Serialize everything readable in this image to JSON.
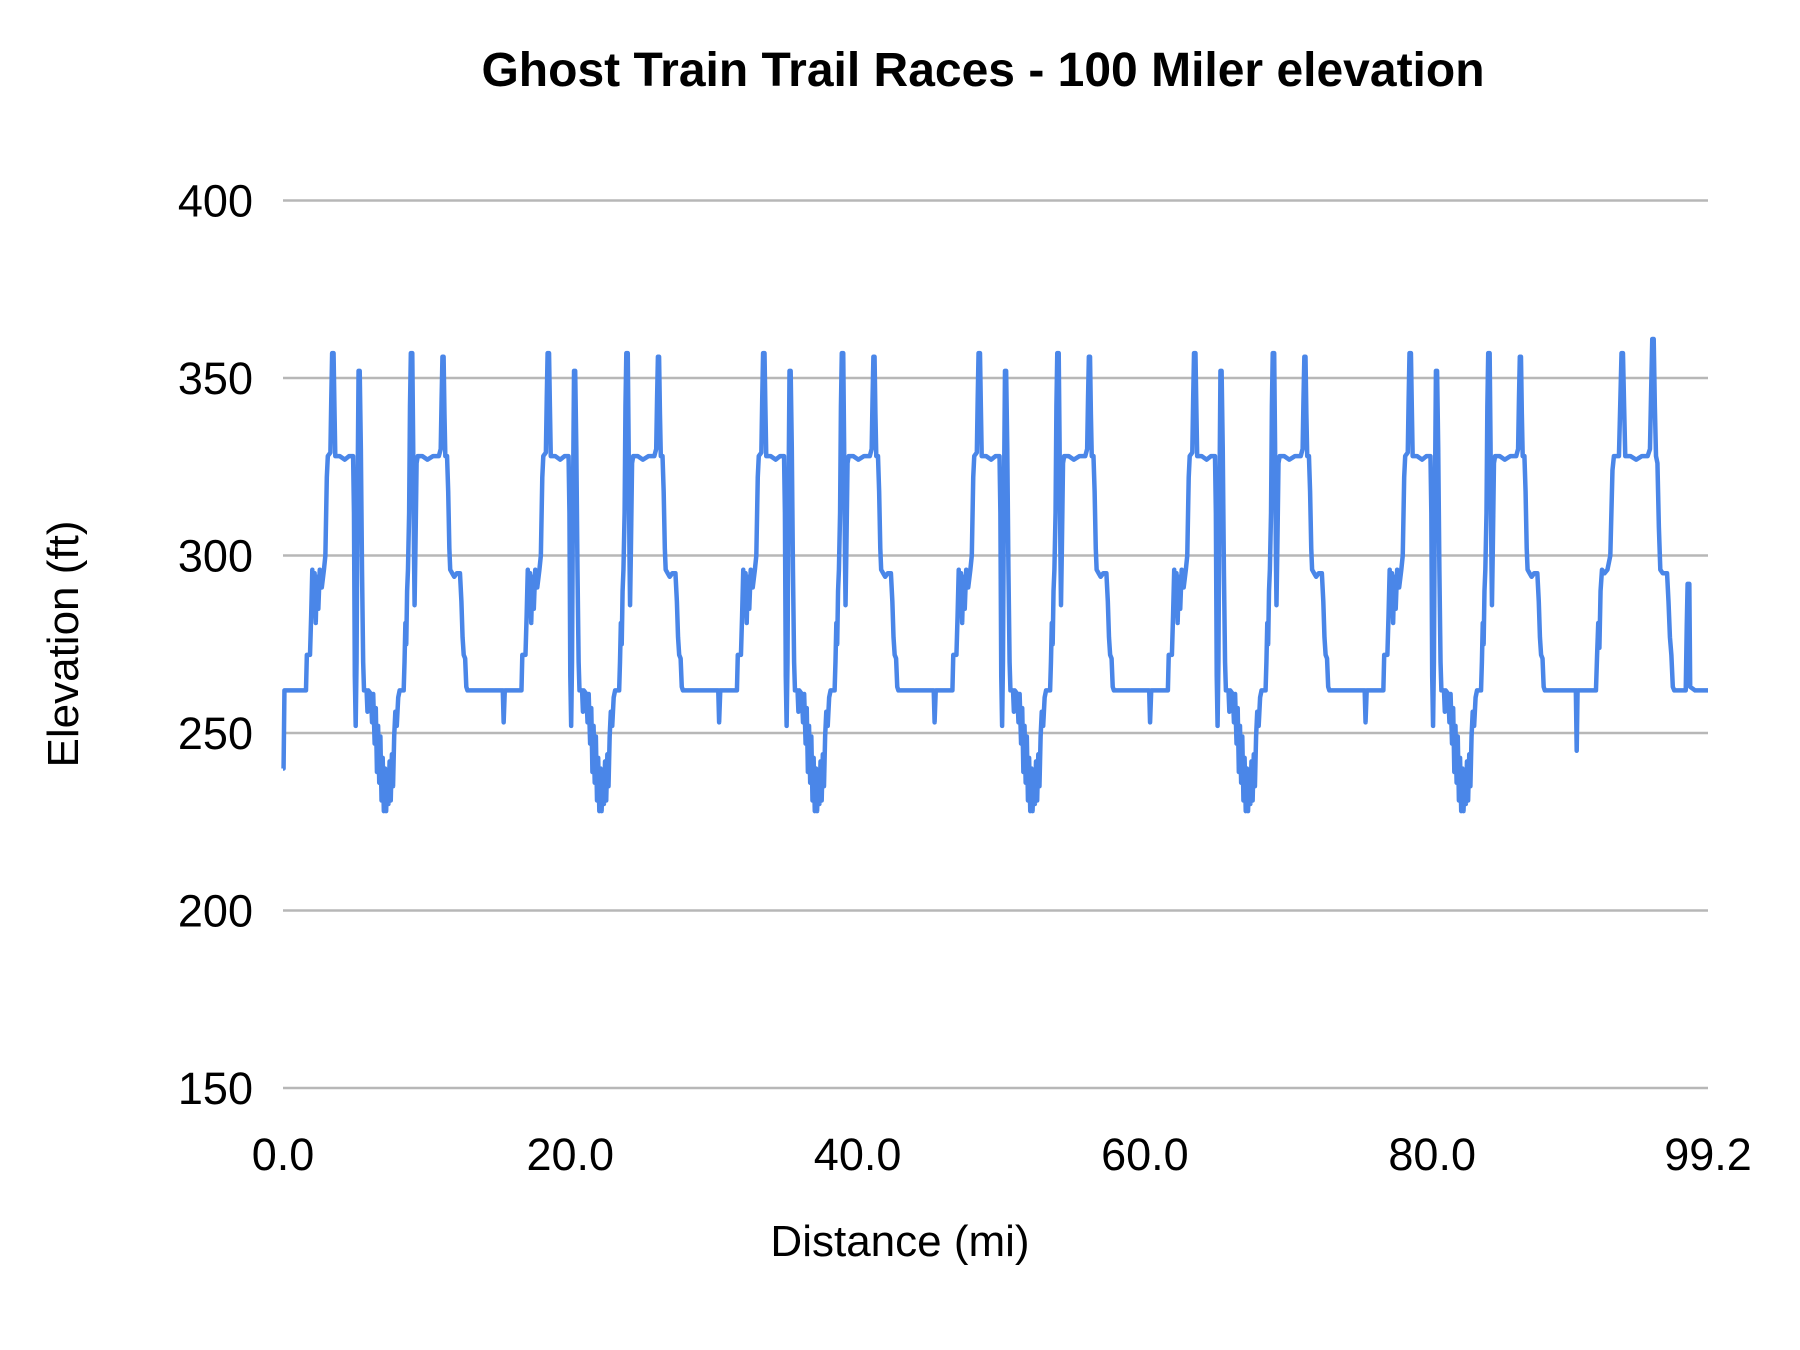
{
  "title": "Ghost Train Trail Races - 100 Miler elevation",
  "y_axis": {
    "title": "Elevation (ft)",
    "tick_labels": [
      "400",
      "350",
      "300",
      "250",
      "200",
      "150"
    ]
  },
  "x_axis": {
    "title": "Distance (mi)",
    "tick_labels": [
      "0.0",
      "20.0",
      "40.0",
      "60.0",
      "80.0",
      "99.2"
    ]
  },
  "colors": {
    "line": "#4a86e8",
    "gridline": "#b7b7b7",
    "text": "#000000",
    "background": "#ffffff"
  },
  "chart_data": {
    "type": "line",
    "title": "Ghost Train Trail Races - 100 Miler elevation",
    "xlabel": "Distance (mi)",
    "ylabel": "Elevation (ft)",
    "xlim": [
      0,
      99.2
    ],
    "ylim": [
      150,
      400
    ],
    "x_ticks": [
      0,
      20,
      40,
      60,
      80,
      99.2
    ],
    "y_ticks": [
      400,
      350,
      300,
      250,
      200,
      150
    ],
    "grid": true,
    "legend": false,
    "structure": "Six repeated 15-mile out-and-back laps (miles 0-90) plus a final partial lap (miles 90-99.2). Full series = start_points, then lap_profile offset by 15*i for i=0..5 (lap 0 skips offsets < 0.5), then final_segment.",
    "lap_length_mi": 15,
    "full_laps": 6,
    "start_points": [
      [
        0.0,
        240
      ],
      [
        0.04,
        240
      ],
      [
        0.1,
        262
      ],
      [
        0.5,
        262
      ]
    ],
    "lap_profile": [
      [
        0.0,
        262
      ],
      [
        0.3,
        262
      ],
      [
        0.36,
        253
      ],
      [
        0.44,
        262
      ],
      [
        1.6,
        262
      ],
      [
        1.66,
        272
      ],
      [
        1.88,
        272
      ],
      [
        1.96,
        283
      ],
      [
        2.04,
        296
      ],
      [
        2.12,
        288
      ],
      [
        2.2,
        295
      ],
      [
        2.28,
        281
      ],
      [
        2.36,
        294
      ],
      [
        2.46,
        285
      ],
      [
        2.56,
        296
      ],
      [
        2.7,
        291
      ],
      [
        2.85,
        296
      ],
      [
        2.95,
        300
      ],
      [
        3.05,
        322
      ],
      [
        3.12,
        328
      ],
      [
        3.3,
        329
      ],
      [
        3.36,
        344
      ],
      [
        3.42,
        357
      ],
      [
        3.52,
        357
      ],
      [
        3.58,
        342
      ],
      [
        3.64,
        328
      ],
      [
        3.95,
        328
      ],
      [
        4.3,
        327
      ],
      [
        4.6,
        328
      ],
      [
        4.88,
        328
      ],
      [
        4.94,
        312
      ],
      [
        5.0,
        266
      ],
      [
        5.06,
        252
      ],
      [
        5.12,
        270
      ],
      [
        5.18,
        312
      ],
      [
        5.26,
        352
      ],
      [
        5.34,
        352
      ],
      [
        5.42,
        330
      ],
      [
        5.5,
        296
      ],
      [
        5.58,
        270
      ],
      [
        5.64,
        262
      ],
      [
        5.82,
        262
      ],
      [
        5.88,
        256
      ],
      [
        5.94,
        262
      ],
      [
        6.12,
        261
      ],
      [
        6.2,
        253
      ],
      [
        6.28,
        261
      ],
      [
        6.38,
        247
      ],
      [
        6.46,
        257
      ],
      [
        6.54,
        239
      ],
      [
        6.62,
        252
      ],
      [
        6.7,
        236
      ],
      [
        6.78,
        249
      ],
      [
        6.86,
        231
      ],
      [
        6.94,
        243
      ],
      [
        7.02,
        228
      ],
      [
        7.1,
        240
      ],
      [
        7.18,
        228
      ],
      [
        7.26,
        239
      ],
      [
        7.34,
        230
      ],
      [
        7.42,
        242
      ],
      [
        7.5,
        231
      ],
      [
        7.58,
        244
      ],
      [
        7.66,
        235
      ],
      [
        7.74,
        249
      ],
      [
        7.82,
        256
      ],
      [
        7.92,
        252
      ],
      [
        8.02,
        260
      ],
      [
        8.12,
        262
      ],
      [
        8.4,
        262
      ],
      [
        8.46,
        270
      ],
      [
        8.52,
        281
      ],
      [
        8.58,
        275
      ],
      [
        8.64,
        290
      ],
      [
        8.7,
        296
      ],
      [
        8.78,
        312
      ],
      [
        8.84,
        342
      ],
      [
        8.9,
        357
      ],
      [
        9.0,
        357
      ],
      [
        9.06,
        332
      ],
      [
        9.12,
        300
      ],
      [
        9.16,
        286
      ],
      [
        9.22,
        302
      ],
      [
        9.3,
        326
      ],
      [
        9.38,
        328
      ],
      [
        9.7,
        328
      ],
      [
        10.05,
        327
      ],
      [
        10.45,
        328
      ],
      [
        10.85,
        328
      ],
      [
        10.98,
        330
      ],
      [
        11.04,
        344
      ],
      [
        11.1,
        356
      ],
      [
        11.18,
        356
      ],
      [
        11.24,
        340
      ],
      [
        11.3,
        328
      ],
      [
        11.42,
        328
      ],
      [
        11.5,
        318
      ],
      [
        11.58,
        302
      ],
      [
        11.64,
        296
      ],
      [
        11.78,
        295
      ],
      [
        11.92,
        294
      ],
      [
        12.1,
        295
      ],
      [
        12.32,
        295
      ],
      [
        12.42,
        287
      ],
      [
        12.5,
        277
      ],
      [
        12.58,
        272
      ],
      [
        12.68,
        271
      ],
      [
        12.76,
        263
      ],
      [
        12.84,
        262
      ],
      [
        13.3,
        262
      ],
      [
        14.2,
        262
      ],
      [
        15.0,
        262
      ]
    ],
    "final_segment": [
      [
        90.0,
        262
      ],
      [
        90.06,
        245
      ],
      [
        90.12,
        262
      ],
      [
        91.4,
        262
      ],
      [
        91.48,
        272
      ],
      [
        91.56,
        281
      ],
      [
        91.64,
        274
      ],
      [
        91.72,
        290
      ],
      [
        91.82,
        296
      ],
      [
        92.0,
        295
      ],
      [
        92.2,
        296
      ],
      [
        92.4,
        300
      ],
      [
        92.55,
        324
      ],
      [
        92.65,
        328
      ],
      [
        93.0,
        328
      ],
      [
        93.1,
        344
      ],
      [
        93.18,
        357
      ],
      [
        93.28,
        357
      ],
      [
        93.36,
        342
      ],
      [
        93.44,
        328
      ],
      [
        93.8,
        328
      ],
      [
        94.2,
        327
      ],
      [
        94.6,
        328
      ],
      [
        95.0,
        328
      ],
      [
        95.16,
        330
      ],
      [
        95.24,
        346
      ],
      [
        95.32,
        361
      ],
      [
        95.42,
        361
      ],
      [
        95.5,
        342
      ],
      [
        95.58,
        328
      ],
      [
        95.68,
        326
      ],
      [
        95.78,
        308
      ],
      [
        95.88,
        296
      ],
      [
        96.05,
        295
      ],
      [
        96.35,
        295
      ],
      [
        96.45,
        287
      ],
      [
        96.55,
        277
      ],
      [
        96.65,
        272
      ],
      [
        96.75,
        263
      ],
      [
        96.85,
        262
      ],
      [
        97.65,
        262
      ],
      [
        97.72,
        280
      ],
      [
        97.78,
        292
      ],
      [
        97.9,
        292
      ],
      [
        97.96,
        263
      ],
      [
        98.3,
        262
      ],
      [
        99.0,
        262
      ],
      [
        99.2,
        262
      ]
    ]
  }
}
